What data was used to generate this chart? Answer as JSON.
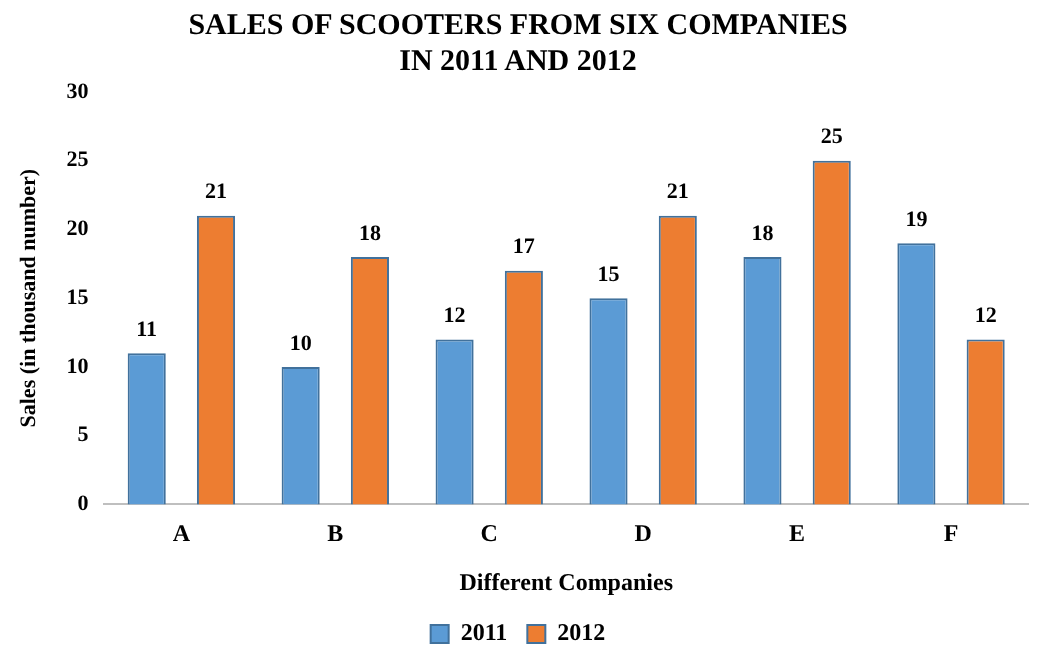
{
  "chart_data": {
    "type": "bar",
    "title": [
      "SALES OF SCOOTERS FROM SIX COMPANIES",
      "IN 2011 AND 2012"
    ],
    "xlabel": "Different Companies",
    "ylabel": "Sales (in thousand number)",
    "categories": [
      "A",
      "B",
      "C",
      "D",
      "E",
      "F"
    ],
    "series": [
      {
        "name": "2011",
        "color": "#5b9bd5",
        "values": [
          11,
          10,
          12,
          15,
          18,
          19
        ]
      },
      {
        "name": "2012",
        "color": "#ed7d31",
        "values": [
          21,
          18,
          17,
          21,
          25,
          12
        ]
      }
    ],
    "ylim": [
      0,
      30
    ],
    "yticks": [
      0,
      5,
      10,
      15,
      20,
      25,
      30
    ],
    "grid": false,
    "legend": "bottom",
    "data_labels": true
  }
}
